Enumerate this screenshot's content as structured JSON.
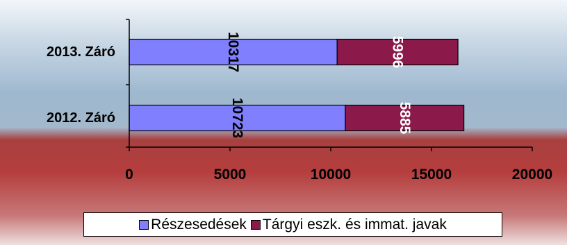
{
  "chart_data": {
    "type": "bar",
    "orientation": "horizontal",
    "stacked": true,
    "categories": [
      "2013. Záró",
      "2012. Záró"
    ],
    "series": [
      {
        "name": "Részesedések",
        "values": [
          10317,
          10723
        ],
        "color": "#8080ff",
        "label_color": "#000000"
      },
      {
        "name": "Tárgyi eszk. és immat. javak",
        "values": [
          5996,
          5885
        ],
        "color": "#8b1a4a",
        "label_color": "#ffffff"
      }
    ],
    "xlim": [
      0,
      20000
    ],
    "x_ticks": [
      0,
      5000,
      10000,
      15000,
      20000
    ],
    "x_tick_labels": [
      "0",
      "5000",
      "10000",
      "15000",
      "20000"
    ],
    "grid": false,
    "legend_position": "bottom"
  }
}
